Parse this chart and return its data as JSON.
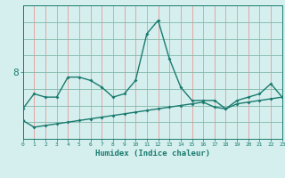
{
  "xlabel": "Humidex (Indice chaleur)",
  "x": [
    0,
    1,
    2,
    3,
    4,
    5,
    6,
    7,
    8,
    9,
    10,
    11,
    12,
    13,
    14,
    15,
    16,
    17,
    18,
    19,
    20,
    21,
    22,
    23
  ],
  "line1": [
    6.9,
    7.35,
    7.25,
    7.25,
    7.85,
    7.85,
    7.75,
    7.55,
    7.25,
    7.35,
    7.75,
    9.15,
    9.55,
    8.4,
    7.55,
    7.15,
    7.15,
    7.15,
    6.9,
    7.15,
    7.25,
    7.35,
    7.65,
    7.25
  ],
  "line2": [
    6.55,
    6.35,
    6.4,
    6.45,
    6.5,
    6.55,
    6.6,
    6.65,
    6.7,
    6.75,
    6.8,
    6.85,
    6.9,
    6.95,
    7.0,
    7.05,
    7.1,
    6.95,
    6.9,
    7.05,
    7.1,
    7.15,
    7.2,
    7.25
  ],
  "line_color": "#1a7a6e",
  "bg_color": "#d4efee",
  "grid_v_color": "#e89898",
  "grid_h_color": "#80b8a8",
  "ytick_label": "8",
  "ytick_val": 8.0,
  "ylim": [
    6.0,
    10.0
  ],
  "xlim": [
    0,
    23
  ]
}
